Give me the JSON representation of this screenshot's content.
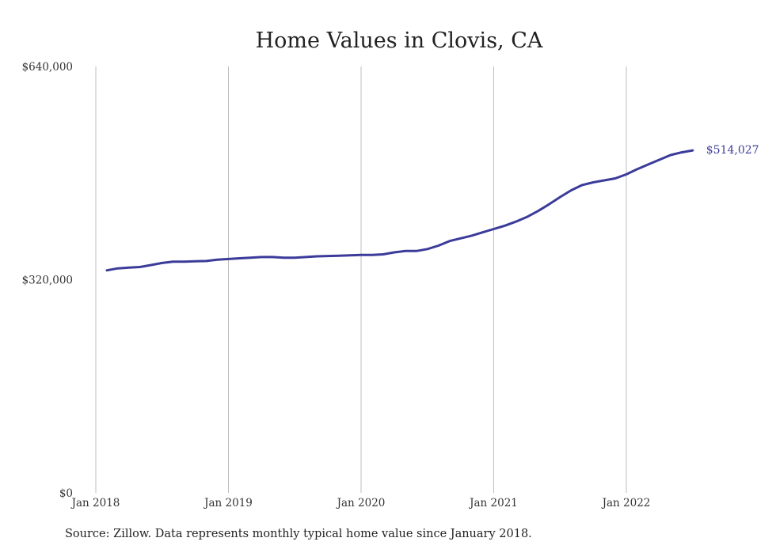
{
  "chart_data": {
    "type": "line",
    "title": "Home Values in Clovis, CA",
    "xlabel": "",
    "ylabel": "",
    "ylim": [
      0,
      640000
    ],
    "y_ticks": [
      "$0",
      "$320,000",
      "$640,000"
    ],
    "x_ticks": [
      "Jan 2018",
      "Jan 2019",
      "Jan 2020",
      "Jan 2021",
      "Jan 2022"
    ],
    "x_tick_months": [
      0,
      12,
      24,
      36,
      48
    ],
    "grid": "vertical",
    "line_color": "#3b3b9a",
    "series": [
      {
        "x": [
          "2018-02",
          "2018-03",
          "2018-04",
          "2018-05",
          "2018-06",
          "2018-07",
          "2018-08",
          "2018-09",
          "2018-10",
          "2018-11",
          "2018-12",
          "2019-01",
          "2019-02",
          "2019-03",
          "2019-04",
          "2019-05",
          "2019-06",
          "2019-07",
          "2019-08",
          "2019-09",
          "2019-10",
          "2019-11",
          "2019-12",
          "2020-01",
          "2020-02",
          "2020-03",
          "2020-04",
          "2020-05",
          "2020-06",
          "2020-07",
          "2020-08",
          "2020-09",
          "2020-10",
          "2020-11",
          "2020-12",
          "2021-01",
          "2021-02",
          "2021-03",
          "2021-04",
          "2021-05",
          "2021-06",
          "2021-07",
          "2021-08",
          "2021-09",
          "2021-10",
          "2021-11",
          "2021-12",
          "2022-01",
          "2022-02",
          "2022-03",
          "2022-04",
          "2022-05",
          "2022-06",
          "2022-07"
        ],
        "values": [
          334000,
          337000,
          338000,
          339000,
          342000,
          345000,
          347000,
          347000,
          347500,
          348000,
          350000,
          351000,
          352000,
          353000,
          354000,
          354000,
          353000,
          353000,
          354000,
          355000,
          355500,
          356000,
          356500,
          357000,
          357000,
          358000,
          361000,
          363000,
          363000,
          366000,
          371000,
          378000,
          382000,
          386000,
          391000,
          396000,
          401000,
          407000,
          414000,
          423000,
          433000,
          444000,
          454000,
          462000,
          466000,
          469000,
          472000,
          478000,
          486000,
          493000,
          500000,
          507000,
          511000,
          514027
        ]
      }
    ],
    "end_label": "$514,027"
  },
  "footer": {
    "source": "Source: Zillow. Data represents monthly typical home value since January 2018."
  }
}
